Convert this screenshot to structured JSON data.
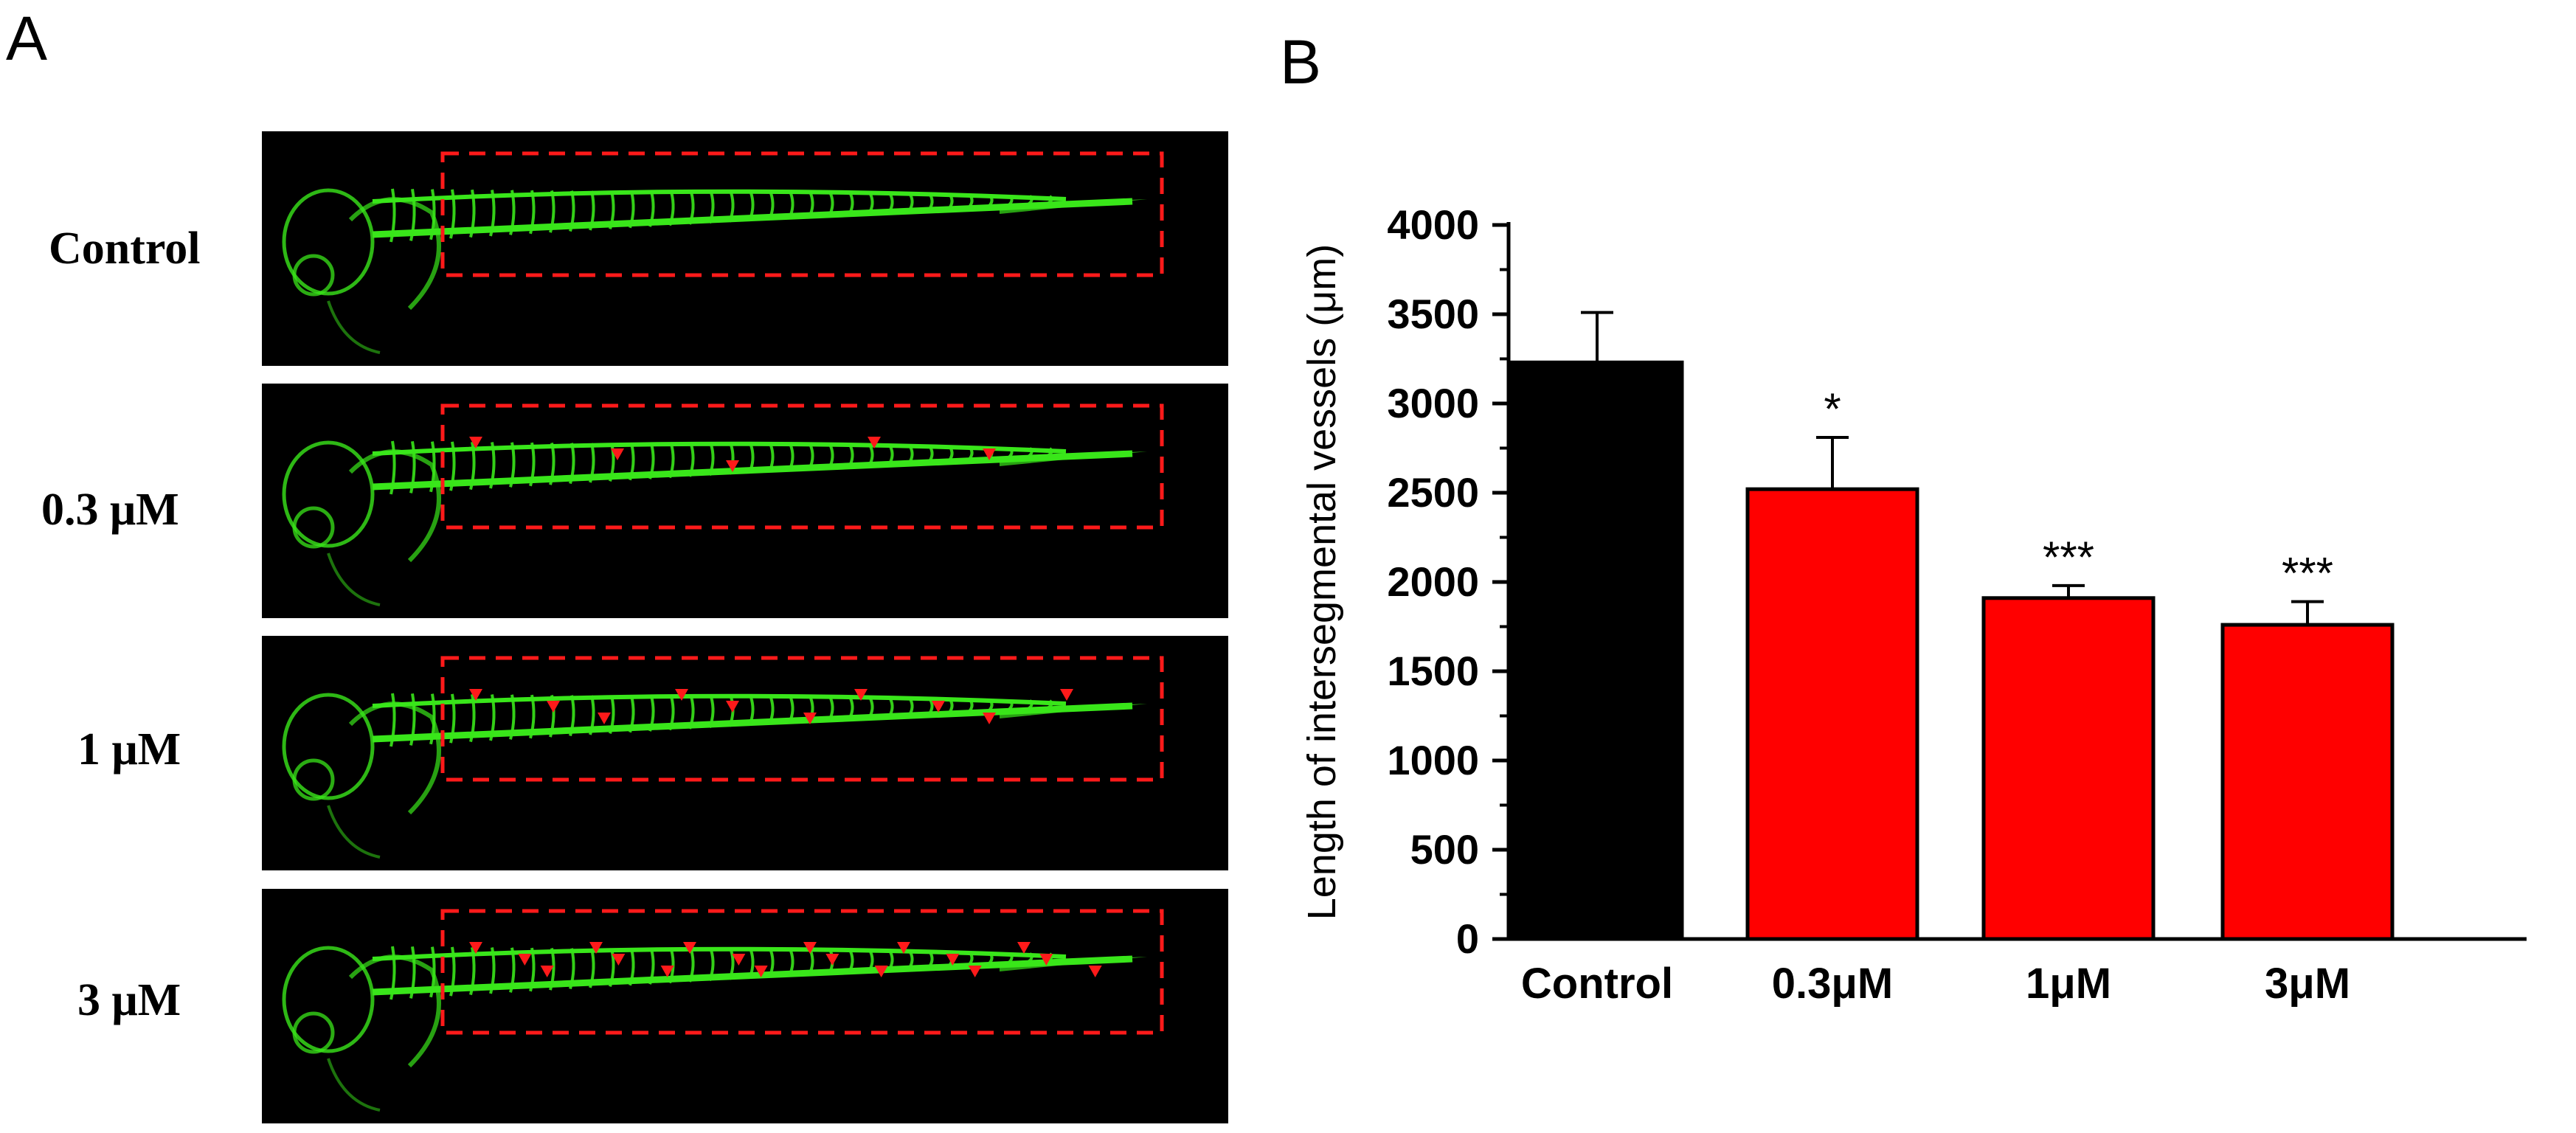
{
  "panels": {
    "a": "A",
    "b": "B"
  },
  "micrographs": [
    {
      "label": "Control",
      "arrowheads": 0
    },
    {
      "label": "0.3 μM",
      "arrowheads": 5
    },
    {
      "label": "1 μM",
      "arrowheads": 10
    },
    {
      "label": "3 μM",
      "arrowheads": 18
    }
  ],
  "colors": {
    "fluorescence": "#39e61a",
    "marker": "#ff1a1a",
    "control_bar": "#000000",
    "treatment_bar": "#ff0000"
  },
  "chart_data": {
    "type": "bar",
    "title": "",
    "xlabel": "",
    "ylabel": "Length of intersegmental vessels (μm)",
    "ylim": [
      0,
      4000
    ],
    "yticks": [
      0,
      500,
      1000,
      1500,
      2000,
      2500,
      3000,
      3500,
      4000
    ],
    "categories": [
      "Control",
      "0.3μM",
      "1μM",
      "3μM"
    ],
    "values": [
      3230,
      2520,
      1910,
      1760
    ],
    "errors": [
      280,
      290,
      70,
      130
    ],
    "significance": [
      "",
      "*",
      "***",
      "***"
    ],
    "bar_colors": [
      "#000000",
      "#ff0000",
      "#ff0000",
      "#ff0000"
    ]
  }
}
